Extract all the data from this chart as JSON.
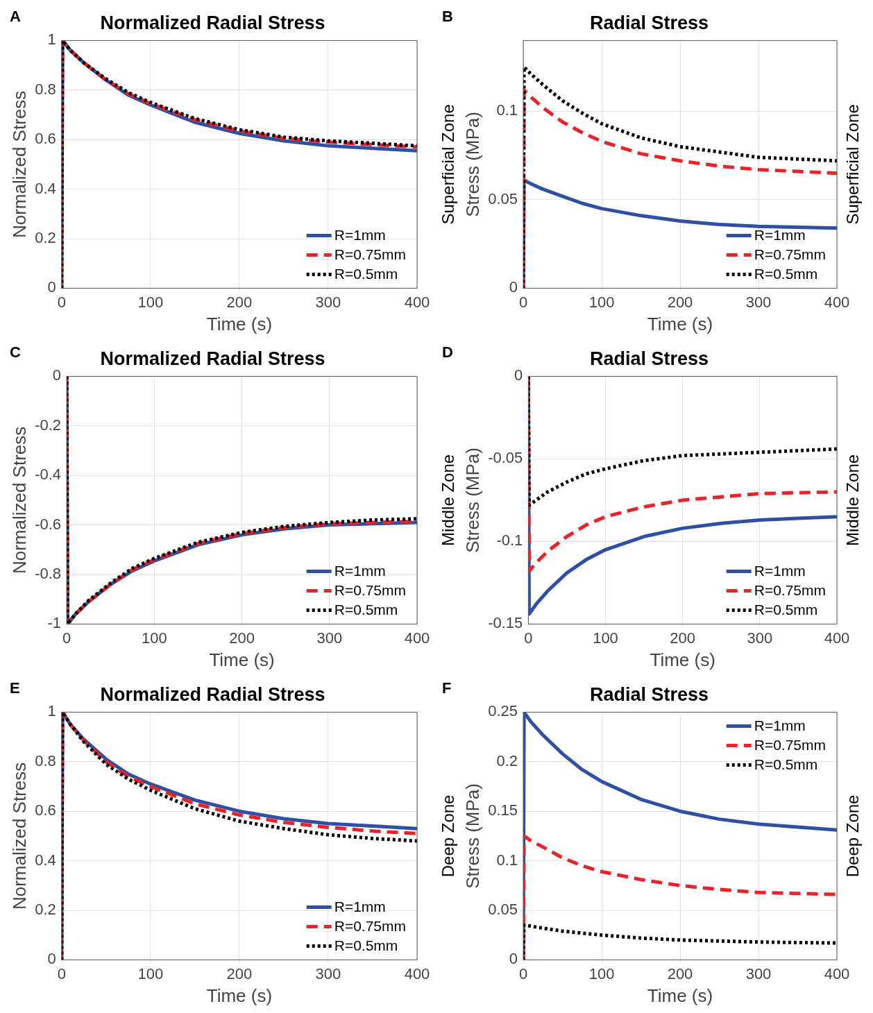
{
  "chart_data": [
    {
      "type": "line",
      "title": "Normalized Radial Stress",
      "xlabel": "Time (s)",
      "ylabel": "Normalized Stress",
      "annotations": [
        "A"
      ],
      "x": [
        0,
        1,
        10,
        25,
        50,
        75,
        100,
        150,
        200,
        250,
        300,
        350,
        400
      ],
      "xlim": [
        0,
        400
      ],
      "xticks": [
        0,
        100,
        200,
        300,
        400
      ],
      "ylim": [
        0,
        1
      ],
      "yticks": [
        0,
        0.2,
        0.4,
        0.6,
        0.8,
        1
      ],
      "grid": true,
      "legend": "bottom right",
      "series": [
        {
          "name": "R=1mm",
          "color": "#2e4fa3",
          "line_style": "solid",
          "values": [
            0,
            1,
            0.96,
            0.91,
            0.84,
            0.78,
            0.74,
            0.67,
            0.625,
            0.595,
            0.575,
            0.565,
            0.555
          ]
        },
        {
          "name": "R=0.75mm",
          "color": "#e8232a",
          "line_style": "dashed",
          "values": [
            0,
            1,
            0.96,
            0.91,
            0.84,
            0.785,
            0.745,
            0.68,
            0.635,
            0.605,
            0.59,
            0.58,
            0.57
          ]
        },
        {
          "name": "R=0.5mm",
          "color": "#000000",
          "line_style": "dotted",
          "values": [
            0,
            1,
            0.96,
            0.91,
            0.845,
            0.79,
            0.75,
            0.685,
            0.64,
            0.61,
            0.595,
            0.585,
            0.575
          ]
        }
      ]
    },
    {
      "type": "line",
      "title": "Radial Stress",
      "xlabel": "Time (s)",
      "ylabel": "Stress (MPa)",
      "y2label": "Superficial Zone",
      "annotations": [
        "B",
        "Superficial Zone"
      ],
      "x": [
        0,
        1,
        10,
        25,
        50,
        75,
        100,
        150,
        200,
        250,
        300,
        350,
        400
      ],
      "xlim": [
        0,
        400
      ],
      "xticks": [
        0,
        100,
        200,
        300,
        400
      ],
      "ylim": [
        0,
        0.14
      ],
      "yticks": [
        0,
        0.05,
        0.1
      ],
      "grid": true,
      "legend": "bottom right",
      "series": [
        {
          "name": "R=1mm",
          "color": "#2e4fa3",
          "line_style": "solid",
          "values": [
            0,
            0.061,
            0.059,
            0.056,
            0.052,
            0.048,
            0.045,
            0.041,
            0.038,
            0.036,
            0.035,
            0.0345,
            0.034
          ]
        },
        {
          "name": "R=0.75mm",
          "color": "#e8232a",
          "line_style": "dashed",
          "values": [
            0,
            0.112,
            0.108,
            0.102,
            0.094,
            0.088,
            0.083,
            0.076,
            0.072,
            0.069,
            0.067,
            0.066,
            0.065
          ]
        },
        {
          "name": "R=0.5mm",
          "color": "#000000",
          "line_style": "dotted",
          "values": [
            0,
            0.125,
            0.121,
            0.115,
            0.106,
            0.099,
            0.093,
            0.085,
            0.08,
            0.077,
            0.074,
            0.073,
            0.072
          ]
        }
      ]
    },
    {
      "type": "line",
      "title": "Normalized Radial Stress",
      "xlabel": "Time (s)",
      "ylabel": "Normalized Stress",
      "annotations": [
        "C"
      ],
      "x": [
        0,
        1,
        10,
        25,
        50,
        75,
        100,
        150,
        200,
        250,
        300,
        350,
        400
      ],
      "xlim": [
        0,
        400
      ],
      "xticks": [
        0,
        100,
        200,
        300,
        400
      ],
      "ylim": [
        -1,
        0
      ],
      "yticks": [
        -1,
        -0.8,
        -0.6,
        -0.4,
        -0.2,
        0
      ],
      "grid": true,
      "legend": "bottom right",
      "series": [
        {
          "name": "R=1mm",
          "color": "#2e4fa3",
          "line_style": "solid",
          "values": [
            0,
            -1,
            -0.96,
            -0.91,
            -0.84,
            -0.785,
            -0.745,
            -0.68,
            -0.64,
            -0.615,
            -0.6,
            -0.595,
            -0.59
          ]
        },
        {
          "name": "R=0.75mm",
          "color": "#e8232a",
          "line_style": "dashed",
          "values": [
            0,
            -1,
            -0.96,
            -0.91,
            -0.84,
            -0.78,
            -0.74,
            -0.675,
            -0.635,
            -0.61,
            -0.595,
            -0.59,
            -0.585
          ]
        },
        {
          "name": "R=0.5mm",
          "color": "#000000",
          "line_style": "dotted",
          "values": [
            0,
            -1,
            -0.96,
            -0.905,
            -0.835,
            -0.775,
            -0.735,
            -0.67,
            -0.63,
            -0.605,
            -0.59,
            -0.58,
            -0.575
          ]
        }
      ]
    },
    {
      "type": "line",
      "title": "Radial Stress",
      "xlabel": "Time (s)",
      "ylabel": "Stress (MPa)",
      "y2label": "Middle Zone",
      "annotations": [
        "D",
        "Middle Zone"
      ],
      "x": [
        0,
        1,
        10,
        25,
        50,
        75,
        100,
        150,
        200,
        250,
        300,
        350,
        400
      ],
      "xlim": [
        0,
        400
      ],
      "xticks": [
        0,
        100,
        200,
        300,
        400
      ],
      "ylim": [
        -0.15,
        0
      ],
      "yticks": [
        -0.15,
        -0.1,
        -0.05,
        0
      ],
      "grid": true,
      "legend": "bottom right",
      "series": [
        {
          "name": "R=1mm",
          "color": "#2e4fa3",
          "line_style": "solid",
          "values": [
            0,
            -0.144,
            -0.138,
            -0.13,
            -0.119,
            -0.111,
            -0.105,
            -0.097,
            -0.092,
            -0.089,
            -0.087,
            -0.086,
            -0.085
          ]
        },
        {
          "name": "R=0.75mm",
          "color": "#e8232a",
          "line_style": "dashed",
          "values": [
            0,
            -0.118,
            -0.113,
            -0.106,
            -0.097,
            -0.09,
            -0.085,
            -0.079,
            -0.075,
            -0.073,
            -0.071,
            -0.0705,
            -0.07
          ]
        },
        {
          "name": "R=0.5mm",
          "color": "#000000",
          "line_style": "dotted",
          "values": [
            0,
            -0.078,
            -0.075,
            -0.07,
            -0.064,
            -0.059,
            -0.056,
            -0.051,
            -0.048,
            -0.047,
            -0.046,
            -0.045,
            -0.044
          ]
        }
      ]
    },
    {
      "type": "line",
      "title": "Normalized Radial Stress",
      "xlabel": "Time (s)",
      "ylabel": "Normalized Stress",
      "annotations": [
        "E"
      ],
      "x": [
        0,
        1,
        10,
        25,
        50,
        75,
        100,
        150,
        200,
        250,
        300,
        350,
        400
      ],
      "xlim": [
        0,
        400
      ],
      "xticks": [
        0,
        100,
        200,
        300,
        400
      ],
      "ylim": [
        0,
        1
      ],
      "yticks": [
        0,
        0.2,
        0.4,
        0.6,
        0.8,
        1
      ],
      "grid": true,
      "legend": "bottom right",
      "series": [
        {
          "name": "R=1mm",
          "color": "#2e4fa3",
          "line_style": "solid",
          "values": [
            0,
            1,
            0.95,
            0.89,
            0.81,
            0.75,
            0.71,
            0.645,
            0.6,
            0.57,
            0.55,
            0.54,
            0.53
          ]
        },
        {
          "name": "R=0.75mm",
          "color": "#e8232a",
          "line_style": "dashed",
          "values": [
            0,
            1,
            0.95,
            0.885,
            0.8,
            0.74,
            0.7,
            0.63,
            0.585,
            0.555,
            0.535,
            0.52,
            0.51
          ]
        },
        {
          "name": "R=0.5mm",
          "color": "#000000",
          "line_style": "dotted",
          "values": [
            0,
            1,
            0.95,
            0.88,
            0.79,
            0.73,
            0.685,
            0.61,
            0.56,
            0.53,
            0.505,
            0.49,
            0.48
          ]
        }
      ]
    },
    {
      "type": "line",
      "title": "Radial Stress",
      "xlabel": "Time (s)",
      "ylabel": "Stress (MPa)",
      "y2label": "Deep Zone",
      "annotations": [
        "F",
        "Deep Zone"
      ],
      "x": [
        0,
        1,
        10,
        25,
        50,
        75,
        100,
        150,
        200,
        250,
        300,
        350,
        400
      ],
      "xlim": [
        0,
        400
      ],
      "xticks": [
        0,
        100,
        200,
        300,
        400
      ],
      "ylim": [
        0,
        0.25
      ],
      "yticks": [
        0,
        0.05,
        0.1,
        0.15,
        0.2,
        0.25
      ],
      "grid": true,
      "legend": "top right",
      "series": [
        {
          "name": "R=1mm",
          "color": "#2e4fa3",
          "line_style": "solid",
          "values": [
            0,
            0.25,
            0.24,
            0.227,
            0.208,
            0.192,
            0.18,
            0.162,
            0.15,
            0.142,
            0.137,
            0.134,
            0.131
          ]
        },
        {
          "name": "R=0.75mm",
          "color": "#e8232a",
          "line_style": "dashed",
          "values": [
            0,
            0.125,
            0.12,
            0.114,
            0.103,
            0.095,
            0.089,
            0.081,
            0.075,
            0.071,
            0.068,
            0.067,
            0.066
          ]
        },
        {
          "name": "R=0.5mm",
          "color": "#000000",
          "line_style": "dotted",
          "values": [
            0,
            0.035,
            0.034,
            0.032,
            0.029,
            0.027,
            0.025,
            0.022,
            0.02,
            0.019,
            0.018,
            0.0175,
            0.017
          ]
        }
      ]
    }
  ]
}
